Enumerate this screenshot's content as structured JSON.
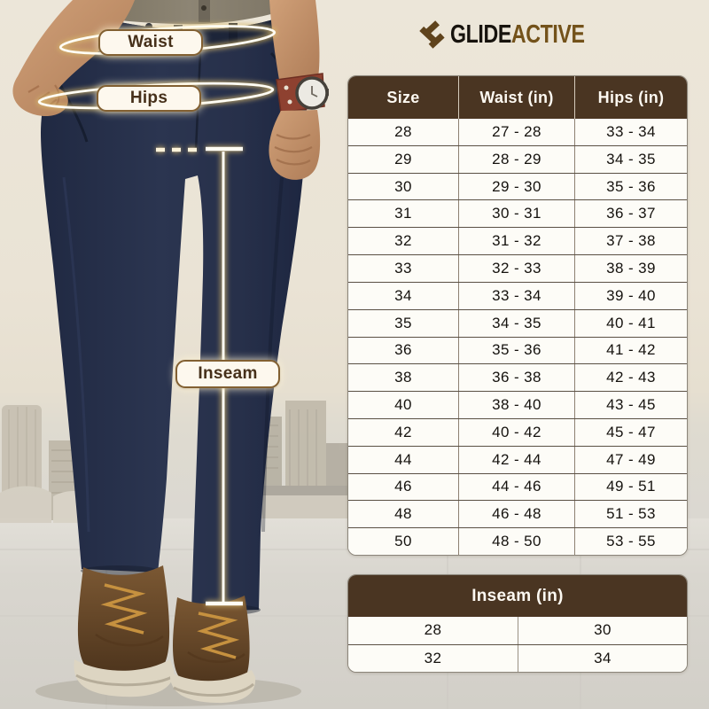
{
  "brand": {
    "icon": "glideactive-zigzag-icon",
    "name_primary": "GLIDE",
    "name_secondary": "ACTIVE",
    "accent_color": "#73521a",
    "icon_color": "#5f431c"
  },
  "annotations": {
    "waist": "Waist",
    "hips": "Hips",
    "inseam": "Inseam"
  },
  "chart_data": [
    {
      "type": "table",
      "name": "size_chart",
      "columns": [
        "Size",
        "Waist (in)",
        "Hips (in)"
      ],
      "rows": [
        [
          "28",
          "27 - 28",
          "33 - 34"
        ],
        [
          "29",
          "28 - 29",
          "34 - 35"
        ],
        [
          "30",
          "29 - 30",
          "35 - 36"
        ],
        [
          "31",
          "30 - 31",
          "36 - 37"
        ],
        [
          "32",
          "31 - 32",
          "37 - 38"
        ],
        [
          "33",
          "32 - 33",
          "38 - 39"
        ],
        [
          "34",
          "33 - 34",
          "39 - 40"
        ],
        [
          "35",
          "34 - 35",
          "40 - 41"
        ],
        [
          "36",
          "35 - 36",
          "41 - 42"
        ],
        [
          "38",
          "36 - 38",
          "42 - 43"
        ],
        [
          "40",
          "38 - 40",
          "43 - 45"
        ],
        [
          "42",
          "40 - 42",
          "45 - 47"
        ],
        [
          "44",
          "42 - 44",
          "47 - 49"
        ],
        [
          "46",
          "44 - 46",
          "49 - 51"
        ],
        [
          "48",
          "46 - 48",
          "51 - 53"
        ],
        [
          "50",
          "48 - 50",
          "53 - 55"
        ]
      ]
    },
    {
      "type": "table",
      "name": "inseam_chart",
      "header": "Inseam (in)",
      "rows": [
        [
          "28",
          "30"
        ],
        [
          "32",
          "34"
        ]
      ]
    }
  ],
  "colors": {
    "table_header_bg": "#4a3522",
    "background_beige": "#e9e2d4",
    "pants_navy": "#27304a",
    "badge_text": "#46301a",
    "measure_line": "#fffdf2"
  }
}
